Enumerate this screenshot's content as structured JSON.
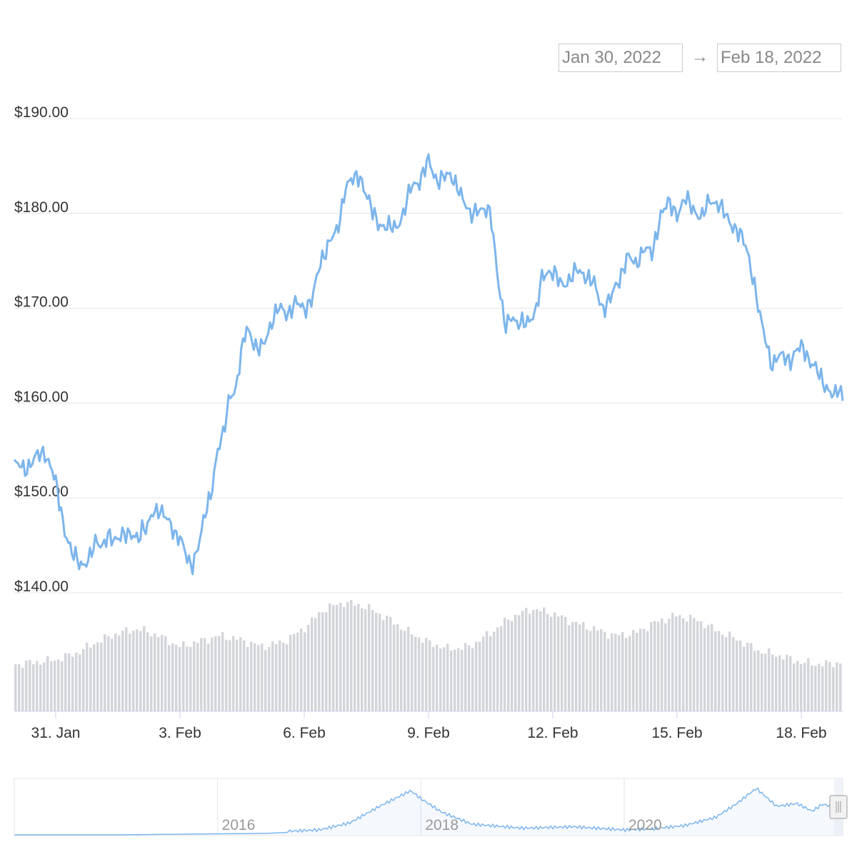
{
  "range_selector": {
    "from": "Jan 30, 2022",
    "arrow": "→",
    "to": "Feb 18, 2022"
  },
  "colors": {
    "price_line": "#7cb5ec",
    "volume_bar": "#d3d5da",
    "gridline": "#e6e6e6",
    "navigator_line": "#7cb5ec",
    "navigator_mask": "#e6ebf5"
  },
  "chart_data": {
    "type": "line",
    "title": "",
    "xlabel": "",
    "ylabel": "",
    "y_axis": {
      "ticks": [
        "$140.00",
        "$150.00",
        "$160.00",
        "$170.00",
        "$180.00",
        "$190.00"
      ],
      "values": [
        140,
        150,
        160,
        170,
        180,
        190
      ],
      "ylim": [
        140,
        190
      ]
    },
    "x_axis": {
      "tick_labels": [
        "31. Jan",
        "3. Feb",
        "6. Feb",
        "9. Feb",
        "12. Feb",
        "15. Feb",
        "18. Feb"
      ],
      "tick_days": [
        1,
        4,
        7,
        10,
        13,
        16,
        19
      ],
      "xlim_days": [
        0,
        20
      ]
    },
    "grid": true,
    "series": [
      {
        "kind": "price",
        "x_days": [
          0.0,
          0.25,
          0.5,
          0.75,
          0.9,
          1.0,
          1.2,
          1.4,
          1.6,
          1.8,
          2.0,
          2.1,
          2.25,
          2.4,
          2.6,
          2.8,
          3.0,
          3.1,
          3.2,
          3.35,
          3.5,
          3.7,
          3.9,
          4.0,
          4.1,
          4.2,
          4.3,
          4.4,
          4.5,
          4.6,
          4.75,
          4.9,
          5.05,
          5.2,
          5.35,
          5.5,
          5.6,
          5.7,
          5.8,
          5.9,
          6.0,
          6.2,
          6.4,
          6.6,
          6.8,
          7.0,
          7.2,
          7.4,
          7.6,
          7.8,
          8.0,
          8.2,
          8.35,
          8.5,
          8.65,
          8.8,
          9.0,
          9.2,
          9.4,
          9.6,
          9.8,
          10.0,
          10.2,
          10.4,
          10.55,
          10.7,
          10.85,
          11.0,
          11.15,
          11.3,
          11.5,
          11.7,
          11.85,
          12.0,
          12.15,
          12.3,
          12.45,
          12.6,
          12.75,
          12.9,
          13.05,
          13.2,
          13.4,
          13.6,
          13.8,
          14.0,
          14.2,
          14.4,
          14.6,
          14.8,
          15.0,
          15.2,
          15.4,
          15.6,
          15.8,
          16.0,
          16.2,
          16.4,
          16.6,
          16.8,
          17.0,
          17.2,
          17.4,
          17.55,
          17.7,
          17.85,
          18.0,
          18.15,
          18.3,
          18.45,
          18.6,
          18.75,
          18.9,
          19.05,
          19.2,
          19.35,
          19.5,
          19.65,
          19.8,
          19.9,
          20.0
        ],
        "values": [
          153.6,
          153.0,
          154.2,
          154.8,
          153.1,
          151.5,
          147.0,
          144.0,
          143.0,
          143.5,
          145.5,
          145.0,
          146.0,
          145.2,
          146.5,
          145.8,
          146.0,
          147.0,
          146.5,
          148.5,
          149.0,
          147.5,
          146.2,
          146.0,
          144.5,
          143.0,
          143.0,
          144.5,
          146.0,
          148.0,
          150.5,
          155.0,
          156.5,
          161.0,
          161.5,
          165.5,
          168.0,
          167.5,
          166.0,
          165.5,
          166.0,
          168.5,
          170.0,
          169.5,
          170.5,
          170.0,
          171.0,
          175.0,
          177.0,
          178.0,
          183.0,
          183.5,
          184.0,
          182.0,
          180.0,
          179.0,
          178.5,
          178.5,
          180.0,
          183.0,
          183.5,
          185.5,
          183.5,
          183.8,
          184.0,
          183.0,
          181.0,
          180.0,
          180.5,
          180.0,
          180.5,
          172.0,
          168.0,
          169.5,
          168.0,
          168.5,
          169.0,
          169.5,
          173.5,
          174.0,
          173.5,
          172.5,
          173.0,
          174.0,
          173.5,
          172.5,
          170.0,
          171.0,
          173.0,
          175.5,
          174.5,
          176.5,
          175.5,
          180.0,
          181.0,
          180.0,
          181.5,
          180.5,
          179.5,
          181.5,
          181.0,
          179.5,
          178.5,
          177.5,
          176.0,
          173.0,
          169.0,
          166.5,
          164.0,
          164.8,
          165.0,
          164.5,
          165.5,
          166.0,
          164.5,
          163.5,
          162.5,
          161.5,
          160.5,
          161.5,
          160.8
        ],
        "ylim": [
          140,
          190
        ]
      },
      {
        "kind": "volume",
        "x_days": [
          0.0,
          0.5,
          1.0,
          1.5,
          2.0,
          2.5,
          3.0,
          3.5,
          4.0,
          4.5,
          5.0,
          5.5,
          6.0,
          6.5,
          7.0,
          7.5,
          8.0,
          8.5,
          9.0,
          9.5,
          10.0,
          10.5,
          11.0,
          11.5,
          12.0,
          12.5,
          13.0,
          13.5,
          14.0,
          14.5,
          15.0,
          15.5,
          16.0,
          16.5,
          17.0,
          17.5,
          18.0,
          18.5,
          19.0,
          19.5,
          20.0
        ],
        "values": [
          0.42,
          0.44,
          0.46,
          0.52,
          0.62,
          0.7,
          0.74,
          0.68,
          0.58,
          0.63,
          0.68,
          0.64,
          0.58,
          0.62,
          0.74,
          0.92,
          0.98,
          0.94,
          0.84,
          0.72,
          0.62,
          0.56,
          0.58,
          0.7,
          0.84,
          0.92,
          0.88,
          0.8,
          0.74,
          0.68,
          0.7,
          0.8,
          0.86,
          0.82,
          0.72,
          0.64,
          0.54,
          0.5,
          0.44,
          0.42,
          0.44
        ],
        "ylim": [
          0,
          1
        ]
      },
      {
        "kind": "navigator",
        "x_years": [
          2014.0,
          2015.0,
          2016.0,
          2016.5,
          2017.0,
          2017.3,
          2017.6,
          2017.9,
          2018.0,
          2018.2,
          2018.5,
          2019.0,
          2019.5,
          2020.0,
          2020.3,
          2020.6,
          2020.9,
          2021.1,
          2021.3,
          2021.5,
          2021.7,
          2021.85,
          2021.95,
          2022.1
        ],
        "values": [
          0.0,
          0.0,
          0.02,
          0.03,
          0.08,
          0.22,
          0.55,
          0.85,
          0.7,
          0.45,
          0.22,
          0.15,
          0.18,
          0.12,
          0.14,
          0.2,
          0.35,
          0.6,
          0.9,
          0.55,
          0.6,
          0.45,
          0.58,
          0.52
        ],
        "ylim": [
          0,
          1
        ]
      }
    ],
    "navigator_labels": [
      "2016",
      "2018",
      "2020"
    ],
    "navigator_label_years": [
      2016,
      2018,
      2020
    ],
    "navigator_xlim_years": [
      2014.0,
      2022.15
    ]
  }
}
